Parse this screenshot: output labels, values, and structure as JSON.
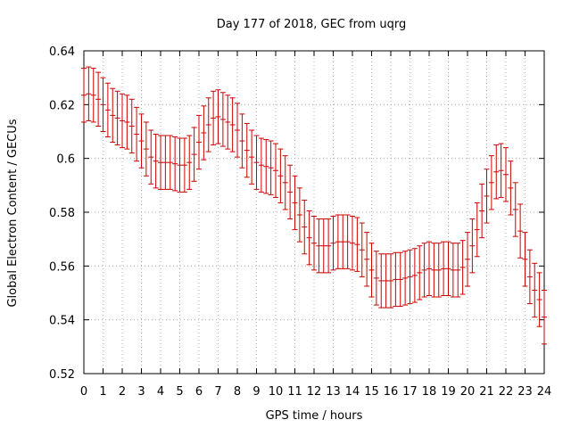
{
  "chart_data": {
    "type": "errorbar",
    "title": "Day 177 of 2018, GEC from uqrg",
    "xlabel": "GPS time / hours",
    "ylabel": "Global Electron Content / GECUs",
    "xlim": [
      0,
      24
    ],
    "ylim": [
      0.52,
      0.64
    ],
    "x_ticks": [
      0,
      1,
      2,
      3,
      4,
      5,
      6,
      7,
      8,
      9,
      10,
      11,
      12,
      13,
      14,
      15,
      16,
      17,
      18,
      19,
      20,
      21,
      22,
      23,
      24
    ],
    "y_ticks": [
      "0.52",
      "0.54",
      "0.56",
      "0.58",
      "0.6",
      "0.62",
      "0.64"
    ],
    "grid": true,
    "error": 0.01,
    "series": [
      {
        "name": "GEC",
        "color": "#cc0000",
        "x": [
          0.0,
          0.25,
          0.5,
          0.75,
          1.0,
          1.25,
          1.5,
          1.75,
          2.0,
          2.25,
          2.5,
          2.75,
          3.0,
          3.25,
          3.5,
          3.75,
          4.0,
          4.25,
          4.5,
          4.75,
          5.0,
          5.25,
          5.5,
          5.75,
          6.0,
          6.25,
          6.5,
          6.75,
          7.0,
          7.25,
          7.5,
          7.75,
          8.0,
          8.25,
          8.5,
          8.75,
          9.0,
          9.25,
          9.5,
          9.75,
          10.0,
          10.25,
          10.5,
          10.75,
          11.0,
          11.25,
          11.5,
          11.75,
          12.0,
          12.25,
          12.5,
          12.75,
          13.0,
          13.25,
          13.5,
          13.75,
          14.0,
          14.25,
          14.5,
          14.75,
          15.0,
          15.25,
          15.5,
          15.75,
          16.0,
          16.25,
          16.5,
          16.75,
          17.0,
          17.25,
          17.5,
          17.75,
          18.0,
          18.25,
          18.5,
          18.75,
          19.0,
          19.25,
          19.5,
          19.75,
          20.0,
          20.25,
          20.5,
          20.75,
          21.0,
          21.25,
          21.5,
          21.75,
          22.0,
          22.25,
          22.5,
          22.75,
          23.0,
          23.25,
          23.5,
          23.75,
          24.0
        ],
        "values": [
          0.6235,
          0.624,
          0.6235,
          0.622,
          0.62,
          0.618,
          0.616,
          0.615,
          0.614,
          0.6135,
          0.612,
          0.609,
          0.6065,
          0.6035,
          0.6005,
          0.599,
          0.5985,
          0.5985,
          0.5985,
          0.598,
          0.5975,
          0.5975,
          0.5985,
          0.6015,
          0.606,
          0.6095,
          0.6125,
          0.615,
          0.6155,
          0.6145,
          0.6135,
          0.6125,
          0.6105,
          0.6065,
          0.603,
          0.6005,
          0.5985,
          0.5975,
          0.597,
          0.5965,
          0.5955,
          0.5935,
          0.591,
          0.5875,
          0.5835,
          0.579,
          0.5745,
          0.5705,
          0.5685,
          0.5675,
          0.5675,
          0.5675,
          0.5685,
          0.569,
          0.569,
          0.569,
          0.5685,
          0.568,
          0.566,
          0.5625,
          0.5585,
          0.5555,
          0.5545,
          0.5545,
          0.5545,
          0.555,
          0.555,
          0.5555,
          0.556,
          0.5565,
          0.5575,
          0.5585,
          0.559,
          0.5585,
          0.5585,
          0.559,
          0.559,
          0.5585,
          0.5585,
          0.5595,
          0.5625,
          0.5675,
          0.5735,
          0.5805,
          0.586,
          0.591,
          0.595,
          0.5955,
          0.594,
          0.589,
          0.581,
          0.573,
          0.5625,
          0.556,
          0.551,
          0.5475,
          0.541
        ]
      }
    ]
  }
}
